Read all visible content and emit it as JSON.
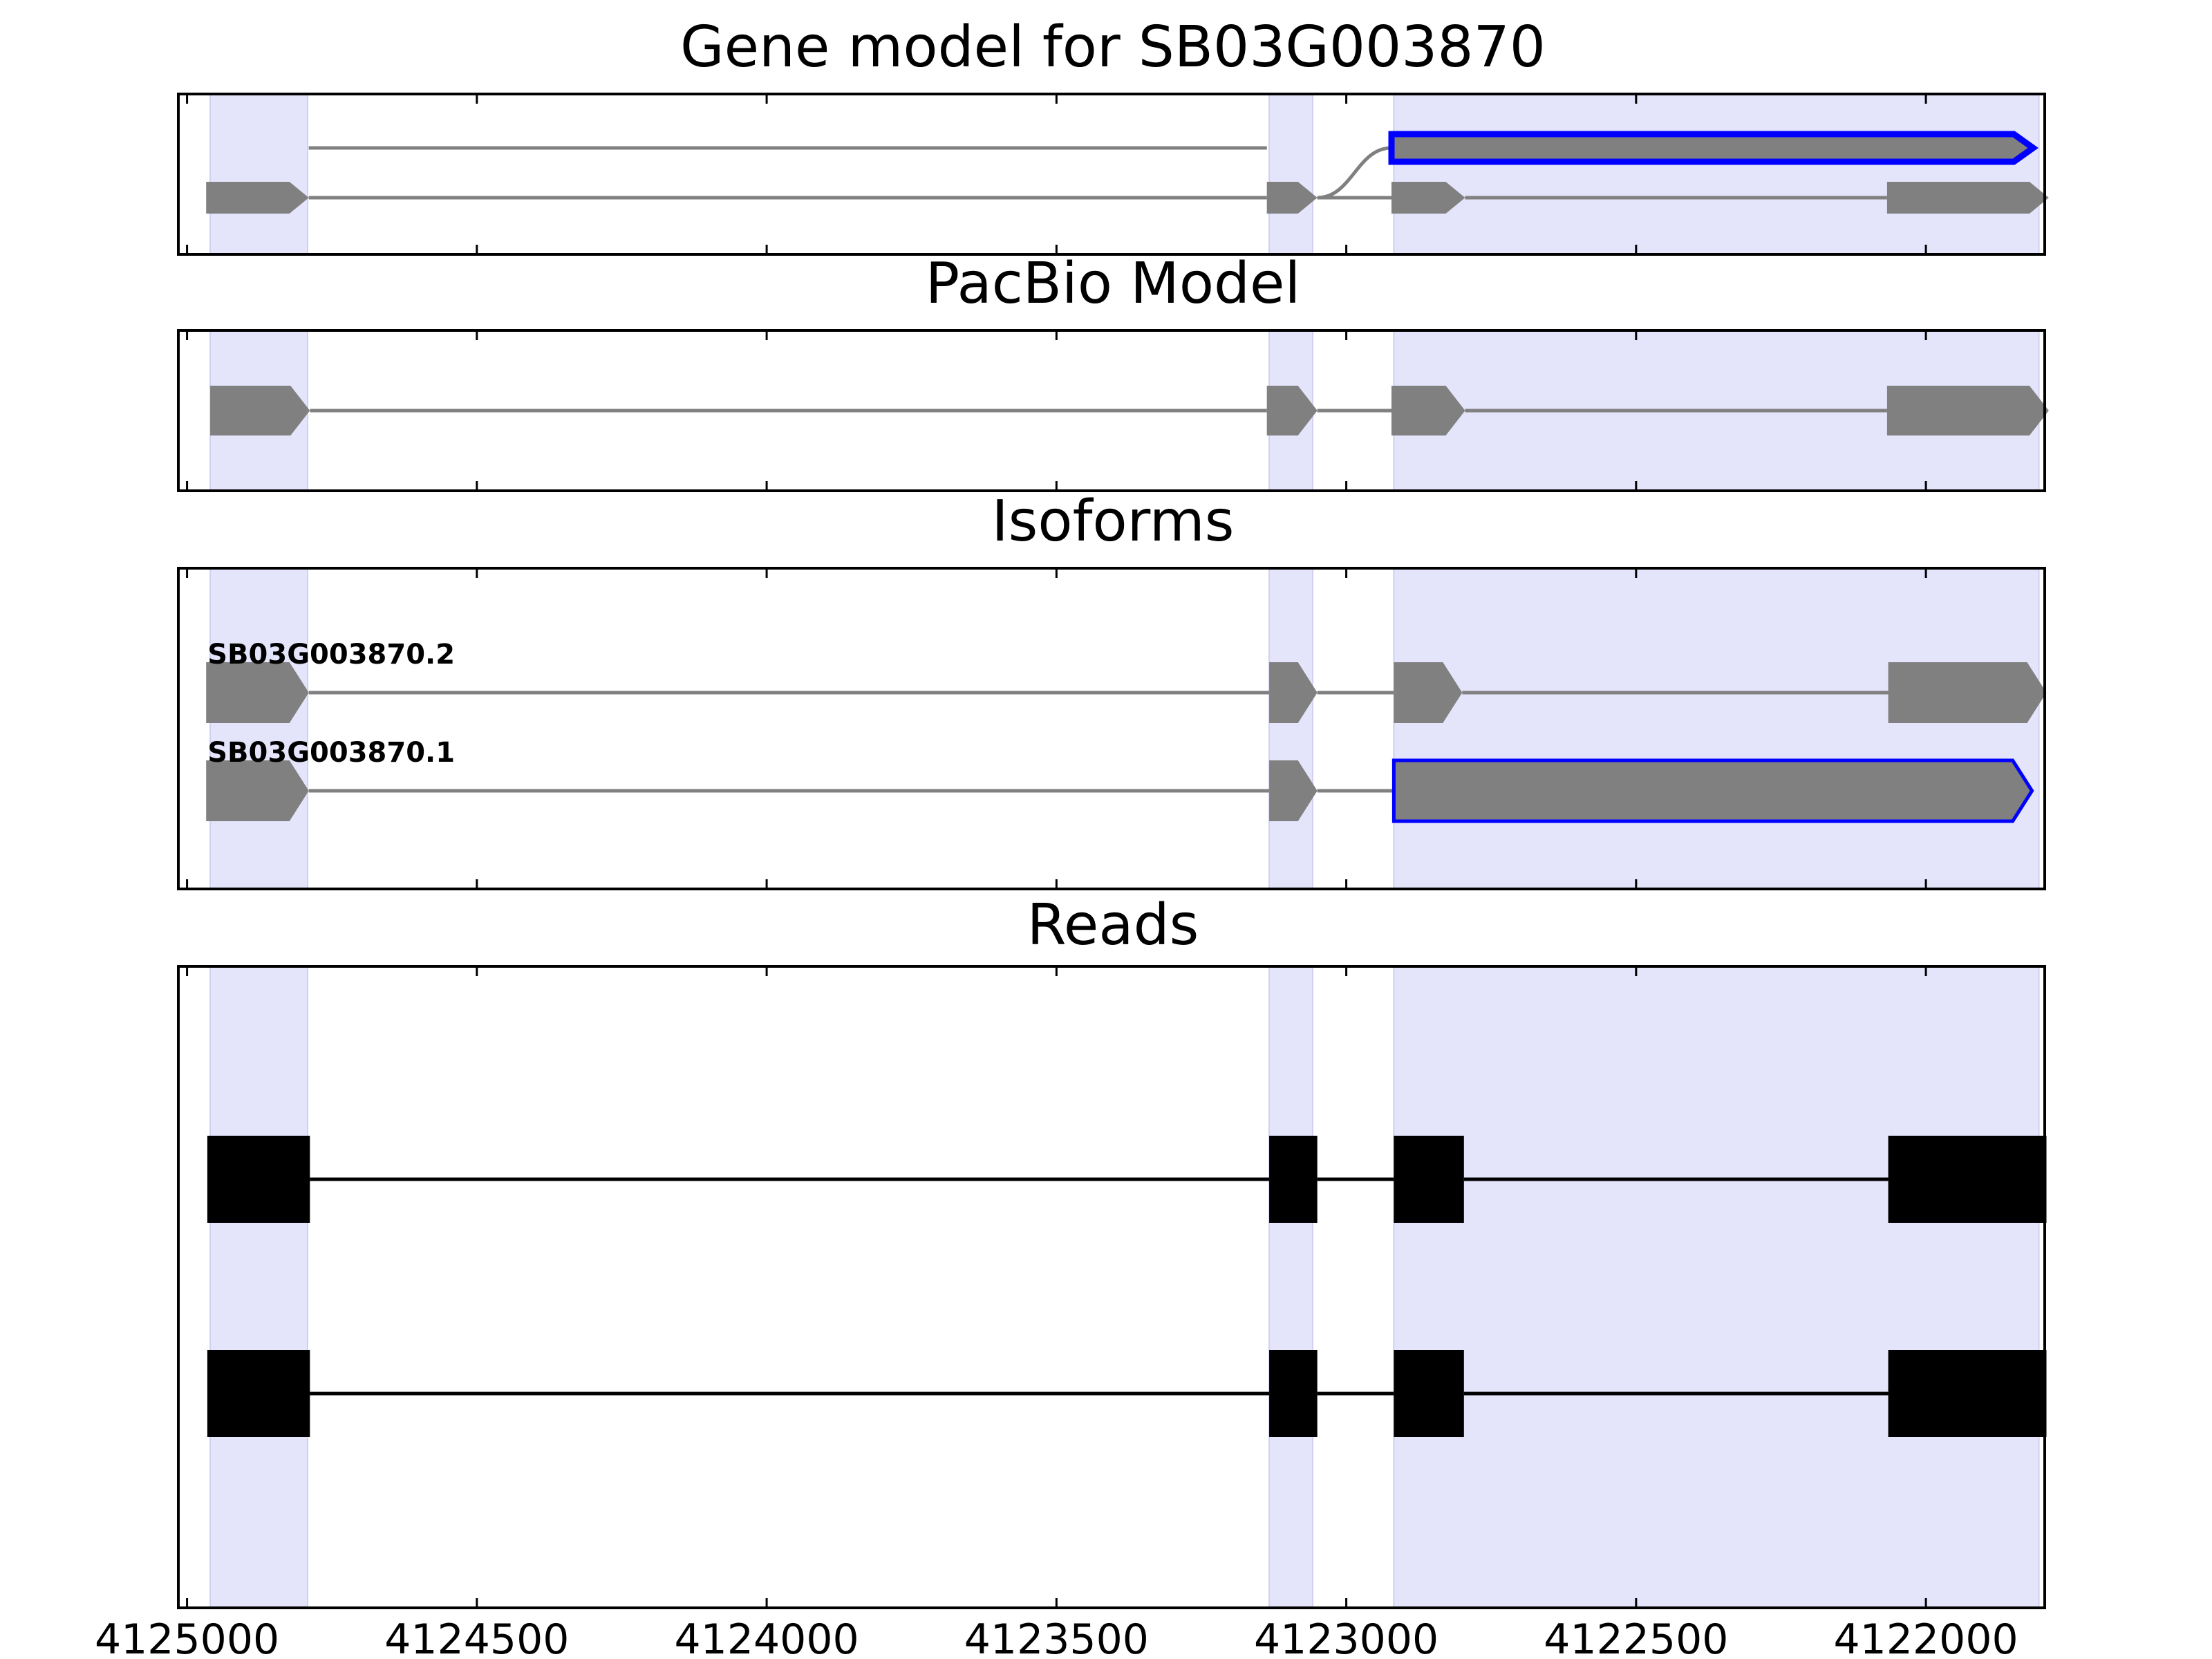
{
  "chart_data": {
    "type": "gene-model",
    "x_reversed": true,
    "xlim": [
      4125015,
      4121795
    ],
    "xticks": [
      4125000,
      4124500,
      4124000,
      4123500,
      4123000,
      4122500,
      4122000
    ],
    "xtick_labels": [
      "4125000",
      "4124500",
      "4124000",
      "4123500",
      "4123000",
      "4122500",
      "4122000"
    ],
    "colors": {
      "exon": "#808080",
      "intron": "#808080",
      "highlight_edge": "#0000ff",
      "read": "#000000",
      "shading": "#e4e4fb"
    },
    "shaded_regions": [
      [
        4124960,
        4124792
      ],
      [
        4123133,
        4123058
      ],
      [
        4122918,
        4121805
      ]
    ],
    "panels": [
      {
        "title": "Gene model for SB03G003870",
        "kind": "gene_model",
        "tracks": [
          {
            "label": "",
            "intron_path": "spliced",
            "exons": [
              [
                4124967,
                4124790
              ],
              [
                4123137,
                4123050
              ],
              [
                4122922,
                4121815
              ]
            ],
            "highlight": true
          },
          {
            "label": "",
            "exons": [
              [
                4124967,
                4124790
              ],
              [
                4123137,
                4123050
              ],
              [
                4122922,
                4122795
              ],
              [
                4122067,
                4121788
              ]
            ],
            "highlight": false
          }
        ]
      },
      {
        "title": "PacBio Model",
        "kind": "gene_model",
        "tracks": [
          {
            "label": "",
            "exons": [
              [
                4124960,
                4124788
              ],
              [
                4123137,
                4123050
              ],
              [
                4122922,
                4122795
              ],
              [
                4122067,
                4121788
              ]
            ],
            "highlight": false
          }
        ]
      },
      {
        "title": "Isoforms",
        "kind": "isoforms",
        "tracks": [
          {
            "label": "SB03G003870.2",
            "exons": [
              [
                4124967,
                4124790
              ],
              [
                4123133,
                4123050
              ],
              [
                4122918,
                4122800
              ],
              [
                4122065,
                4121792
              ]
            ],
            "highlight": false
          },
          {
            "label": "SB03G003870.1",
            "exons": [
              [
                4124967,
                4124790
              ],
              [
                4123133,
                4123050
              ],
              [
                4122918,
                4121817
              ]
            ],
            "highlight": true
          }
        ]
      },
      {
        "title": "Reads",
        "kind": "reads",
        "tracks": [
          {
            "label": "",
            "exons": [
              [
                4124965,
                4124788
              ],
              [
                4123133,
                4123050
              ],
              [
                4122918,
                4122797
              ],
              [
                4122065,
                4121792
              ]
            ]
          },
          {
            "label": "",
            "exons": [
              [
                4124965,
                4124788
              ],
              [
                4123133,
                4123050
              ],
              [
                4122918,
                4122797
              ],
              [
                4122065,
                4121792
              ]
            ]
          }
        ]
      }
    ]
  }
}
